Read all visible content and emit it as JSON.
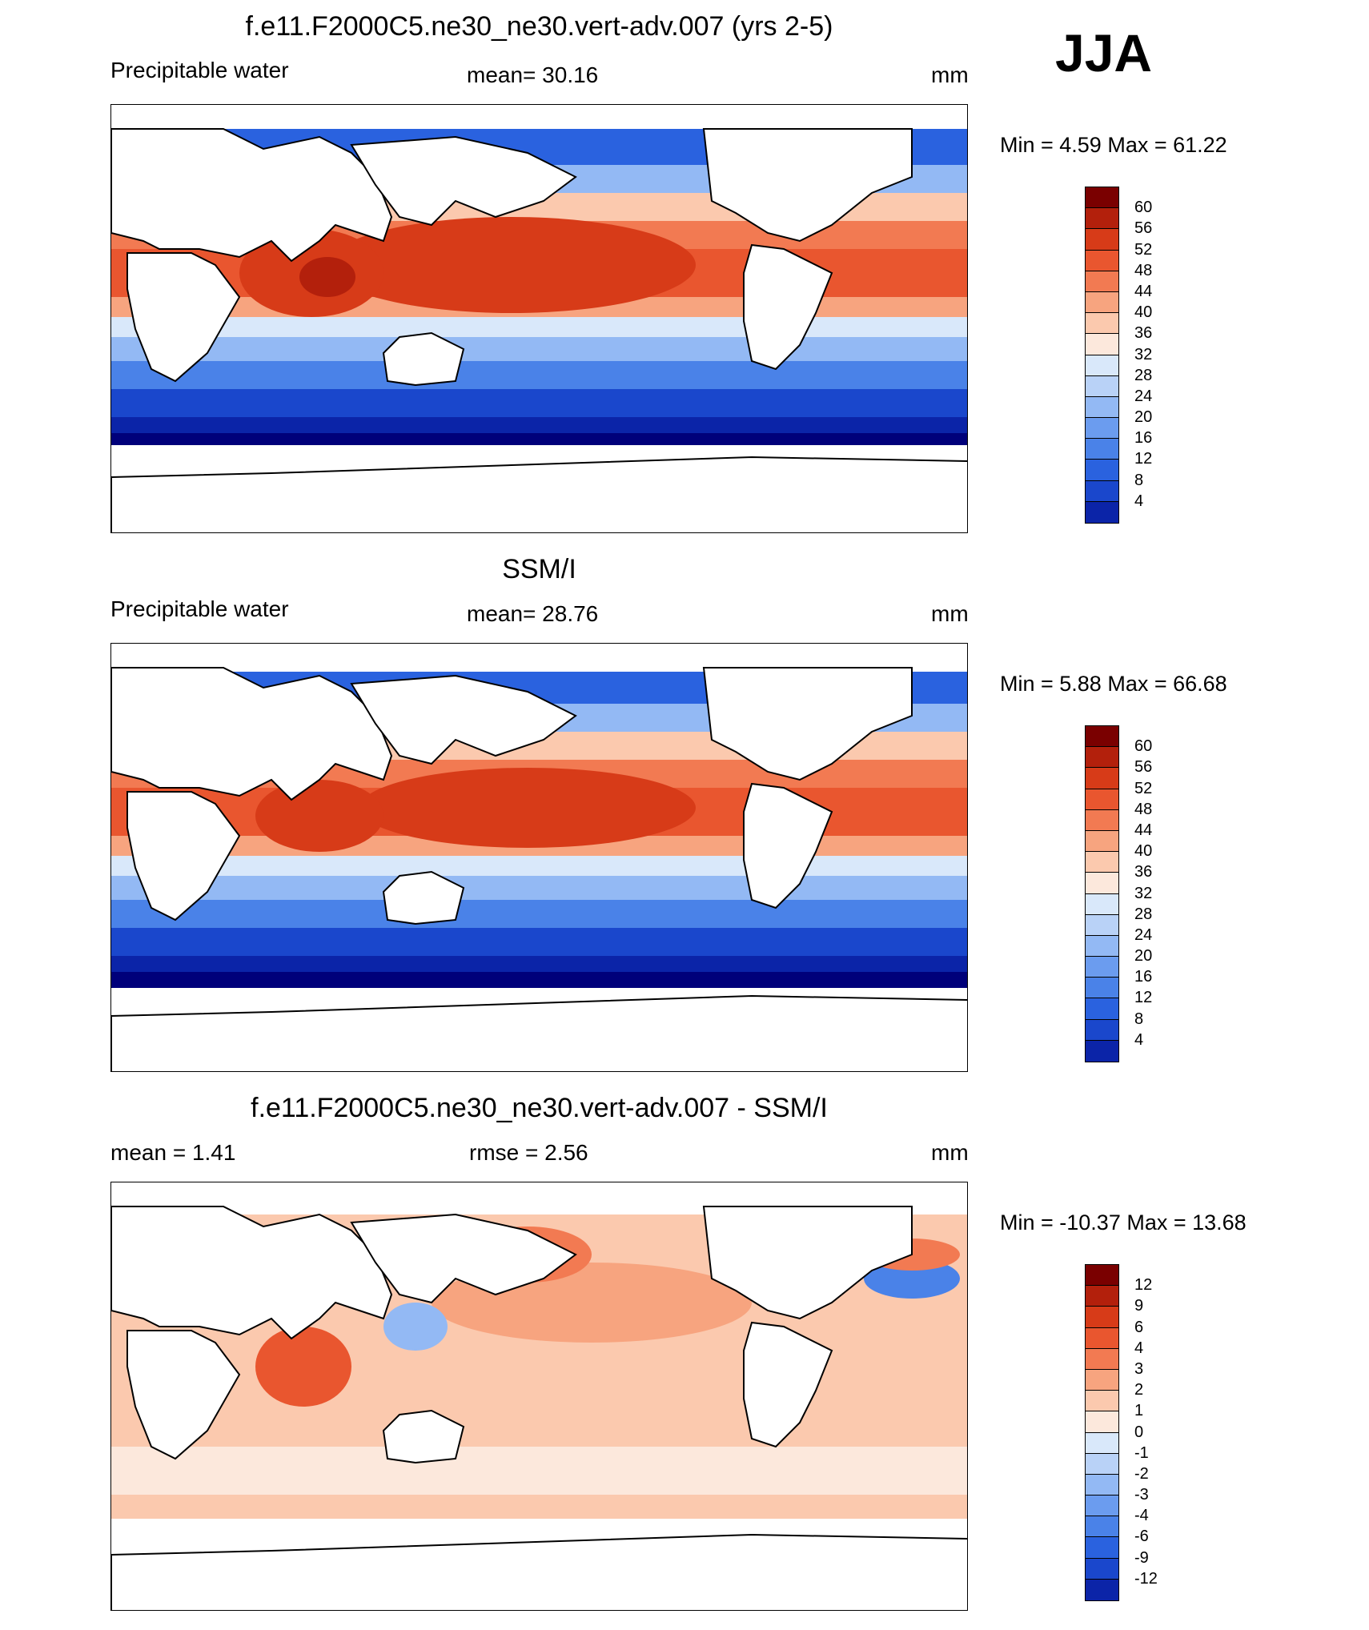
{
  "season": "JJA",
  "colors": {
    "prw": [
      "#00007a",
      "#0b24a8",
      "#1a47cc",
      "#2a62df",
      "#4a82e8",
      "#6b9cef",
      "#93b9f4",
      "#b9d2f7",
      "#d9e8fa",
      "#fce8dc",
      "#fbc9ae",
      "#f7a47f",
      "#f27a52",
      "#e9562f",
      "#d73b18",
      "#b3200c",
      "#7a0000"
    ],
    "diff": [
      "#00007a",
      "#0b24a8",
      "#1a47cc",
      "#2a62df",
      "#4a82e8",
      "#6b9cef",
      "#93b9f4",
      "#b9d2f7",
      "#d9e8fa",
      "#fce8dc",
      "#fbc9ae",
      "#f7a47f",
      "#f27a52",
      "#e9562f",
      "#d73b18",
      "#b3200c",
      "#7a0000"
    ]
  },
  "panels": [
    {
      "title": "f.e11.F2000C5.ne30_ne30.vert-adv.007 (yrs 2-5)",
      "left_label": "Precipitable water",
      "center_label": "mean=  30.16",
      "right_label": "mm",
      "minmax": "Min =   4.59 Max =  61.22",
      "colorbar_labels": [
        "60",
        "56",
        "52",
        "48",
        "44",
        "40",
        "36",
        "32",
        "28",
        "24",
        "20",
        "16",
        "12",
        "8",
        "4"
      ]
    },
    {
      "title": "SSM/I",
      "left_label": "Precipitable water",
      "center_label": "mean=  28.76",
      "right_label": "mm",
      "minmax": "Min =   5.88 Max =  66.68",
      "colorbar_labels": [
        "60",
        "56",
        "52",
        "48",
        "44",
        "40",
        "36",
        "32",
        "28",
        "24",
        "20",
        "16",
        "12",
        "8",
        "4"
      ]
    },
    {
      "title": "f.e11.F2000C5.ne30_ne30.vert-adv.007 - SSM/I",
      "left_label": "mean =    1.41",
      "center_label": "rmse =    2.56",
      "right_label": "mm",
      "minmax": "Min = -10.37 Max =  13.68",
      "colorbar_labels": [
        "12",
        "9",
        "6",
        "4",
        "3",
        "2",
        "1",
        "0",
        "-1",
        "-2",
        "-3",
        "-4",
        "-6",
        "-9",
        "-12"
      ]
    }
  ]
}
